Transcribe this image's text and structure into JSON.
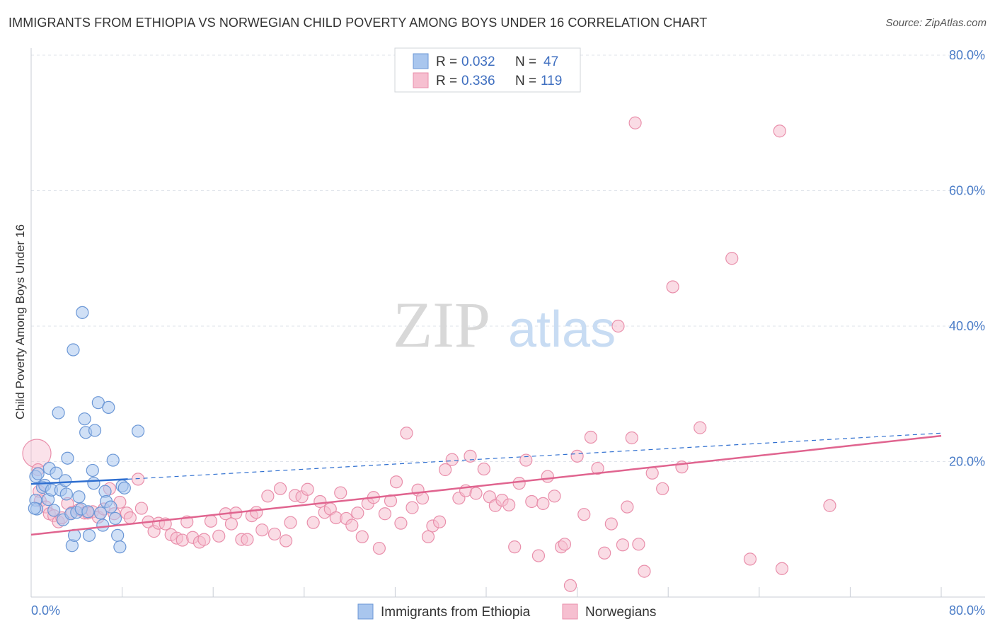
{
  "title": "IMMIGRANTS FROM ETHIOPIA VS NORWEGIAN CHILD POVERTY AMONG BOYS UNDER 16 CORRELATION CHART",
  "source": "Source: ZipAtlas.com",
  "watermark": {
    "zip": "ZIP",
    "atlas": "atlas"
  },
  "colors": {
    "blue_fill": "#a9c6ee",
    "blue_stroke": "#6b97d6",
    "blue_line": "#2f6fd0",
    "pink_fill": "#f6bfd0",
    "pink_stroke": "#e98fab",
    "pink_line": "#e0648f",
    "grid": "#dfe3ea",
    "axis_text": "#4a7cc7"
  },
  "legend": {
    "rows": [
      {
        "r_label": "R = ",
        "r_value": "0.032",
        "n_label": "N = ",
        "n_value": "47"
      },
      {
        "r_label": "R = ",
        "r_value": "0.336",
        "n_label": "N = ",
        "n_value": "119"
      }
    ]
  },
  "chart_data": {
    "type": "scatter",
    "title": "IMMIGRANTS FROM ETHIOPIA VS NORWEGIAN CHILD POVERTY AMONG BOYS UNDER 16 CORRELATION CHART",
    "xlabel": "",
    "ylabel": "Child Poverty Among Boys Under 16",
    "xlim": [
      0,
      80
    ],
    "ylim": [
      0,
      80
    ],
    "x_tick_labels": [
      "0.0%",
      "80.0%"
    ],
    "y_tick_labels": [
      "20.0%",
      "40.0%",
      "60.0%",
      "80.0%"
    ],
    "y_ticks": [
      20,
      40,
      60,
      80
    ],
    "grid": true,
    "legend_position": "bottom",
    "series": [
      {
        "name": "Immigrants from Ethiopia",
        "color": "#a9c6ee",
        "trend": {
          "x0": 0,
          "y0": 16.7,
          "x1": 8.5,
          "y1": 17.4,
          "dashed_to_x": 80,
          "dashed_to_y": 24.2
        },
        "points": [
          [
            0.4,
            17.8
          ],
          [
            0.6,
            18.2
          ],
          [
            0.4,
            14.3
          ],
          [
            0.5,
            13.0
          ],
          [
            1.0,
            16.2
          ],
          [
            1.2,
            16.5
          ],
          [
            1.6,
            19.0
          ],
          [
            1.5,
            14.4
          ],
          [
            1.8,
            15.8
          ],
          [
            2.0,
            12.8
          ],
          [
            2.2,
            18.3
          ],
          [
            2.4,
            27.2
          ],
          [
            2.6,
            15.8
          ],
          [
            2.8,
            11.4
          ],
          [
            3.0,
            17.2
          ],
          [
            3.1,
            15.2
          ],
          [
            3.2,
            20.5
          ],
          [
            3.5,
            12.3
          ],
          [
            3.6,
            7.6
          ],
          [
            3.7,
            36.5
          ],
          [
            3.8,
            9.1
          ],
          [
            4.0,
            12.5
          ],
          [
            4.2,
            14.8
          ],
          [
            4.4,
            13.0
          ],
          [
            4.5,
            42.0
          ],
          [
            4.7,
            26.3
          ],
          [
            4.8,
            24.3
          ],
          [
            5.0,
            12.6
          ],
          [
            5.1,
            9.1
          ],
          [
            5.4,
            18.7
          ],
          [
            5.5,
            16.8
          ],
          [
            5.6,
            24.6
          ],
          [
            5.9,
            28.7
          ],
          [
            6.1,
            12.4
          ],
          [
            6.3,
            10.6
          ],
          [
            6.5,
            15.6
          ],
          [
            6.6,
            14.1
          ],
          [
            6.8,
            28.0
          ],
          [
            7.0,
            13.3
          ],
          [
            7.2,
            20.2
          ],
          [
            7.4,
            11.6
          ],
          [
            7.6,
            9.1
          ],
          [
            7.8,
            7.4
          ],
          [
            8.0,
            16.4
          ],
          [
            8.2,
            16.1
          ],
          [
            9.4,
            24.5
          ],
          [
            0.3,
            13.1
          ]
        ]
      },
      {
        "name": "Norwegians",
        "color": "#f6bfd0",
        "trend": {
          "x0": 0,
          "y0": 9.2,
          "x1": 80,
          "y1": 23.8
        },
        "points": [
          [
            0.5,
            21.2
          ],
          [
            0.6,
            18.8
          ],
          [
            0.7,
            15.6
          ],
          [
            0.8,
            14.2
          ],
          [
            1.3,
            13.3
          ],
          [
            1.6,
            12.3
          ],
          [
            2.0,
            12.0
          ],
          [
            2.4,
            11.1
          ],
          [
            2.7,
            11.7
          ],
          [
            3.2,
            13.8
          ],
          [
            3.6,
            12.5
          ],
          [
            4.2,
            12.9
          ],
          [
            4.7,
            12.4
          ],
          [
            5.0,
            12.4
          ],
          [
            5.4,
            12.6
          ],
          [
            5.9,
            11.8
          ],
          [
            6.4,
            13.0
          ],
          [
            6.9,
            16.0
          ],
          [
            7.3,
            12.3
          ],
          [
            7.8,
            14.0
          ],
          [
            8.4,
            12.4
          ],
          [
            8.7,
            11.7
          ],
          [
            9.4,
            17.4
          ],
          [
            9.7,
            13.1
          ],
          [
            10.3,
            11.1
          ],
          [
            10.8,
            9.7
          ],
          [
            11.2,
            10.9
          ],
          [
            11.8,
            10.8
          ],
          [
            12.3,
            9.2
          ],
          [
            12.8,
            8.7
          ],
          [
            13.3,
            8.4
          ],
          [
            13.7,
            11.1
          ],
          [
            14.2,
            8.8
          ],
          [
            14.8,
            8.1
          ],
          [
            15.2,
            8.5
          ],
          [
            15.8,
            11.2
          ],
          [
            16.5,
            9.0
          ],
          [
            17.1,
            12.3
          ],
          [
            17.6,
            10.8
          ],
          [
            18.0,
            12.4
          ],
          [
            18.5,
            8.5
          ],
          [
            19.0,
            8.5
          ],
          [
            19.4,
            12.0
          ],
          [
            19.8,
            12.5
          ],
          [
            20.3,
            9.9
          ],
          [
            20.8,
            14.9
          ],
          [
            21.4,
            9.3
          ],
          [
            21.9,
            16.0
          ],
          [
            22.4,
            8.3
          ],
          [
            22.8,
            11.0
          ],
          [
            23.2,
            15.0
          ],
          [
            23.8,
            14.8
          ],
          [
            24.3,
            15.9
          ],
          [
            24.8,
            11.0
          ],
          [
            25.4,
            14.1
          ],
          [
            25.8,
            12.5
          ],
          [
            26.3,
            13.0
          ],
          [
            26.8,
            11.7
          ],
          [
            27.2,
            15.4
          ],
          [
            27.7,
            11.6
          ],
          [
            28.2,
            10.6
          ],
          [
            28.7,
            12.4
          ],
          [
            29.1,
            8.9
          ],
          [
            29.6,
            13.8
          ],
          [
            30.1,
            14.7
          ],
          [
            30.6,
            7.2
          ],
          [
            31.1,
            12.3
          ],
          [
            31.6,
            14.2
          ],
          [
            32.1,
            17.0
          ],
          [
            32.5,
            10.9
          ],
          [
            33.0,
            24.2
          ],
          [
            33.5,
            13.2
          ],
          [
            34.0,
            15.8
          ],
          [
            34.4,
            14.6
          ],
          [
            34.9,
            8.9
          ],
          [
            35.3,
            10.5
          ],
          [
            35.9,
            11.1
          ],
          [
            36.4,
            18.8
          ],
          [
            37.0,
            20.3
          ],
          [
            37.6,
            14.6
          ],
          [
            38.2,
            15.7
          ],
          [
            38.6,
            20.8
          ],
          [
            39.1,
            15.3
          ],
          [
            39.8,
            18.9
          ],
          [
            40.3,
            14.8
          ],
          [
            40.8,
            13.5
          ],
          [
            41.4,
            14.3
          ],
          [
            42.0,
            13.6
          ],
          [
            42.5,
            7.4
          ],
          [
            42.9,
            16.8
          ],
          [
            43.5,
            20.2
          ],
          [
            44.0,
            14.1
          ],
          [
            44.6,
            6.1
          ],
          [
            45.0,
            13.8
          ],
          [
            45.4,
            17.8
          ],
          [
            46.0,
            14.9
          ],
          [
            46.6,
            7.4
          ],
          [
            46.9,
            7.8
          ],
          [
            47.4,
            1.7
          ],
          [
            48.0,
            20.8
          ],
          [
            48.6,
            12.2
          ],
          [
            49.2,
            23.6
          ],
          [
            49.8,
            19.0
          ],
          [
            50.4,
            6.5
          ],
          [
            51.0,
            10.8
          ],
          [
            51.6,
            40.0
          ],
          [
            52.0,
            7.7
          ],
          [
            52.4,
            13.3
          ],
          [
            52.8,
            23.5
          ],
          [
            53.4,
            7.8
          ],
          [
            53.9,
            3.8
          ],
          [
            54.6,
            18.3
          ],
          [
            55.5,
            16.0
          ],
          [
            56.4,
            45.8
          ],
          [
            57.2,
            19.2
          ],
          [
            58.8,
            25.0
          ],
          [
            61.6,
            50.0
          ],
          [
            63.2,
            5.6
          ],
          [
            66.0,
            4.2
          ],
          [
            70.2,
            13.5
          ],
          [
            53.1,
            70.0
          ],
          [
            65.8,
            68.8
          ]
        ]
      }
    ]
  }
}
